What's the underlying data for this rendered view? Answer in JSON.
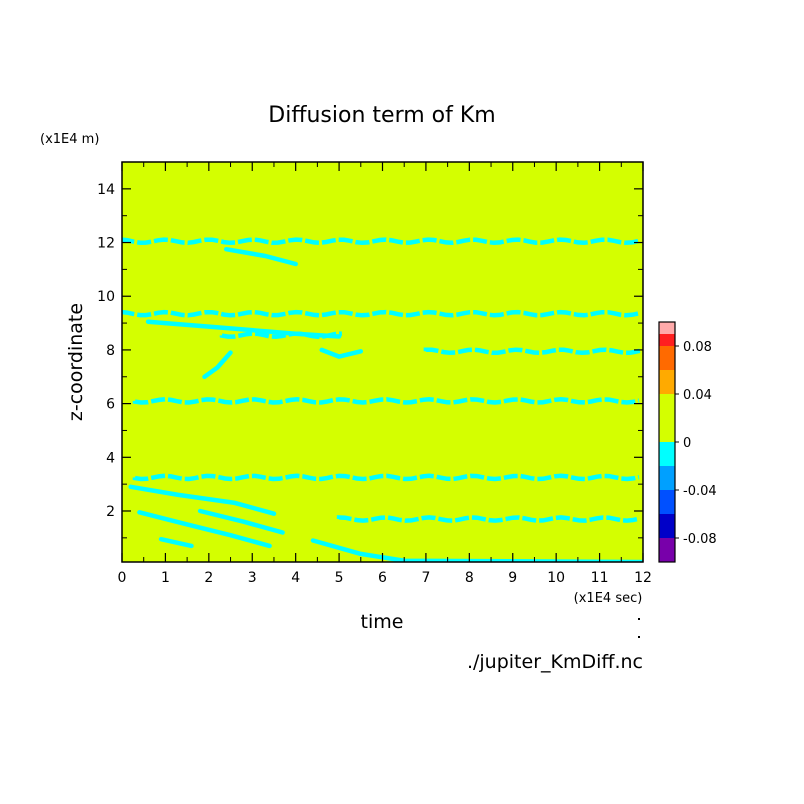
{
  "chart_data": {
    "type": "heatmap",
    "title": "Diffusion term of Km",
    "xlabel": "time",
    "ylabel": "z-coordinate",
    "x_unit": "(x1E4 sec)",
    "y_unit": "(x1E4 m)",
    "source_label": "./jupiter_KmDiff.nc",
    "xlim": [
      0,
      12
    ],
    "ylim": [
      0.1,
      15
    ],
    "x_ticks": [
      "0",
      "1",
      "2",
      "3",
      "4",
      "5",
      "6",
      "7",
      "8",
      "9",
      "10",
      "11",
      "12"
    ],
    "y_ticks": [
      "2",
      "4",
      "6",
      "8",
      "10",
      "12",
      "14"
    ],
    "background_color": "#d4ff00",
    "feature_color": "#00ffff",
    "colorbar": {
      "levels": [
        {
          "range": [
            0.09,
            0.1
          ],
          "color": "#ffaaaa"
        },
        {
          "range": [
            0.08,
            0.09
          ],
          "color": "#ff2020"
        },
        {
          "range": [
            0.06,
            0.08
          ],
          "color": "#ff6a00"
        },
        {
          "range": [
            0.04,
            0.06
          ],
          "color": "#ffaa00"
        },
        {
          "range": [
            0,
            0.04
          ],
          "color": "#d4ff00"
        },
        {
          "range": [
            -0.02,
            0
          ],
          "color": "#00ffff"
        },
        {
          "range": [
            -0.04,
            -0.02
          ],
          "color": "#00a0ff"
        },
        {
          "range": [
            -0.06,
            -0.04
          ],
          "color": "#0050ff"
        },
        {
          "range": [
            -0.08,
            -0.06
          ],
          "color": "#0000c8"
        },
        {
          "range": [
            -0.1,
            -0.08
          ],
          "color": "#7800aa"
        }
      ],
      "tick_labels": [
        "0.08",
        "0.04",
        "0",
        "-0.04",
        "-0.08"
      ],
      "tick_values": [
        0.08,
        0.04,
        0,
        -0.04,
        -0.08
      ]
    },
    "negative_bands": [
      {
        "x0": 0.0,
        "x1": 12.0,
        "z": 12.05
      },
      {
        "x0": 0.0,
        "x1": 12.0,
        "z": 9.35
      },
      {
        "x0": 0.3,
        "x1": 12.0,
        "z": 6.1
      },
      {
        "x0": 0.3,
        "x1": 12.0,
        "z": 3.25
      },
      {
        "x0": 2.3,
        "x1": 5.2,
        "z": 8.55
      },
      {
        "x0": 7.0,
        "x1": 12.0,
        "z": 7.95
      },
      {
        "x0": 5.0,
        "x1": 12.0,
        "z": 1.7
      }
    ],
    "negative_streaks": [
      {
        "points": [
          [
            2.4,
            11.75
          ],
          [
            3.3,
            11.5
          ],
          [
            4.0,
            11.2
          ]
        ]
      },
      {
        "points": [
          [
            0.6,
            9.05
          ],
          [
            2.5,
            8.8
          ],
          [
            4.0,
            8.6
          ],
          [
            5.0,
            8.5
          ]
        ]
      },
      {
        "points": [
          [
            1.9,
            7.0
          ],
          [
            2.2,
            7.35
          ],
          [
            2.5,
            7.9
          ]
        ]
      },
      {
        "points": [
          [
            4.6,
            8.0
          ],
          [
            5.0,
            7.75
          ],
          [
            5.5,
            7.95
          ]
        ]
      },
      {
        "points": [
          [
            0.2,
            2.9
          ],
          [
            1.3,
            2.6
          ],
          [
            2.6,
            2.3
          ],
          [
            3.5,
            1.9
          ]
        ]
      },
      {
        "points": [
          [
            0.4,
            1.95
          ],
          [
            1.5,
            1.5
          ],
          [
            2.5,
            1.1
          ],
          [
            3.4,
            0.7
          ]
        ]
      },
      {
        "points": [
          [
            1.8,
            2.0
          ],
          [
            2.8,
            1.6
          ],
          [
            3.7,
            1.2
          ]
        ]
      },
      {
        "points": [
          [
            4.4,
            0.9
          ],
          [
            5.5,
            0.4
          ],
          [
            6.5,
            0.15
          ],
          [
            12.0,
            0.1
          ]
        ]
      },
      {
        "points": [
          [
            0.9,
            0.95
          ],
          [
            1.6,
            0.7
          ]
        ]
      }
    ]
  }
}
